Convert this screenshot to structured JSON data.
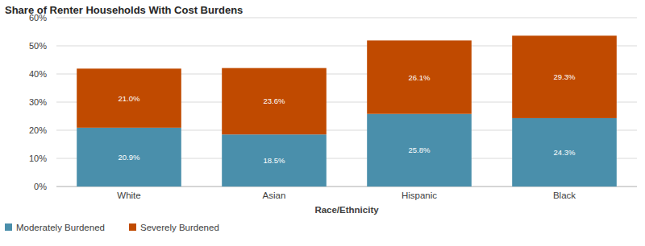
{
  "chart_data": {
    "type": "bar",
    "title": "Share of Renter Households With Cost Burdens",
    "x_label": "Race/Ethnicity",
    "categories": [
      "White",
      "Asian",
      "Hispanic",
      "Black"
    ],
    "series": [
      {
        "name": "Moderately Burdened",
        "color": "#4a8fab",
        "values": [
          20.9,
          18.5,
          25.8,
          24.3
        ],
        "value_labels": [
          "20.9%",
          "18.5%",
          "25.8%",
          "24.3%"
        ]
      },
      {
        "name": "Severely Burdened",
        "color": "#c04a00",
        "values": [
          21.0,
          23.6,
          26.1,
          29.3
        ],
        "value_labels": [
          "21.0%",
          "23.6%",
          "26.1%",
          "29.3%"
        ]
      }
    ],
    "ylim": [
      0,
      60
    ],
    "yticks": [
      {
        "value": 0,
        "label": "0%"
      },
      {
        "value": 10,
        "label": "10%"
      },
      {
        "value": 20,
        "label": "20%"
      },
      {
        "value": 30,
        "label": "30%"
      },
      {
        "value": 40,
        "label": "40%"
      },
      {
        "value": 50,
        "label": "50%"
      },
      {
        "value": 60,
        "label": "60%"
      }
    ],
    "stacked": true,
    "data_labels": true,
    "grid": true,
    "legend": "bottom"
  }
}
